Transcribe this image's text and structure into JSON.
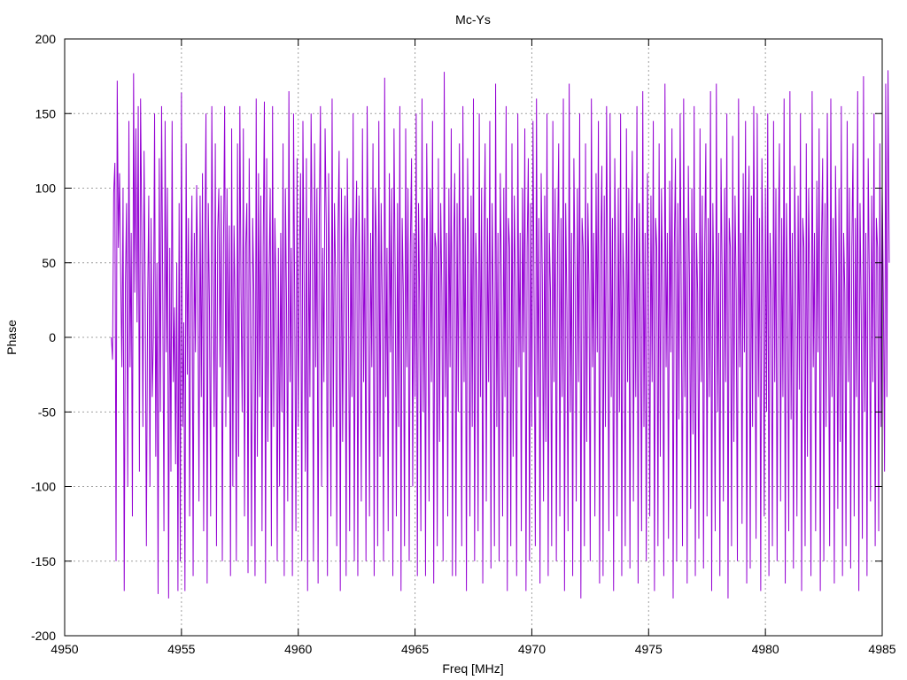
{
  "chart_data": {
    "type": "line",
    "title": "Mc-Ys",
    "xlabel": "Freq [MHz]",
    "ylabel": "Phase",
    "xlim": [
      4950,
      4985
    ],
    "ylim": [
      -200,
      200
    ],
    "xticks": [
      "4950",
      "4955",
      "4960",
      "4965",
      "4970",
      "4975",
      "4980",
      "4985"
    ],
    "yticks": [
      "200",
      "150",
      "100",
      "50",
      "0",
      "-50",
      "-100",
      "-150",
      "-200"
    ],
    "grid": true,
    "series": [
      {
        "color": "#9400d3",
        "x_start": 4952.0,
        "x_step": 0.05,
        "values": [
          0,
          -15,
          97,
          117,
          -150,
          172,
          60,
          110,
          40,
          -20,
          100,
          -170,
          35,
          90,
          -100,
          145,
          -20,
          70,
          -120,
          177,
          30,
          140,
          10,
          155,
          -90,
          160,
          70,
          -60,
          125,
          30,
          -140,
          20,
          95,
          -100,
          80,
          -40,
          0,
          150,
          -80,
          50,
          -172,
          120,
          -50,
          155,
          30,
          -130,
          145,
          -10,
          100,
          -175,
          60,
          -90,
          145,
          -30,
          20,
          -85,
          50,
          -170,
          90,
          -150,
          164,
          -60,
          10,
          -170,
          130,
          -25,
          80,
          -120,
          30,
          95,
          -160,
          70,
          -10,
          102,
          40,
          -110,
          95,
          -40,
          110,
          -130,
          60,
          150,
          -165,
          90,
          20,
          -120,
          155,
          40,
          -60,
          130,
          -140,
          70,
          100,
          -20,
          95,
          -150,
          60,
          155,
          -60,
          100,
          -40,
          75,
          -160,
          140,
          -100,
          75,
          20,
          -150,
          130,
          -80,
          155,
          30,
          -50,
          140,
          -120,
          60,
          90,
          -158,
          120,
          20,
          -140,
          80,
          30,
          -160,
          160,
          -80,
          110,
          -40,
          95,
          -130,
          60,
          158,
          -165,
          120,
          -70,
          40,
          100,
          -140,
          155,
          -60,
          80,
          30,
          -150,
          60,
          -100,
          70,
          -50,
          130,
          -160,
          100,
          20,
          -110,
          165,
          -30,
          60,
          -160,
          150,
          20,
          -130,
          120,
          -60,
          50,
          110,
          -150,
          145,
          40,
          -90,
          120,
          -170,
          80,
          -40,
          150,
          60,
          -150,
          130,
          -20,
          100,
          -165,
          80,
          155,
          -100,
          60,
          -30,
          140,
          75,
          -160,
          110,
          20,
          -120,
          160,
          -60,
          90,
          40,
          -140,
          70,
          125,
          -170,
          100,
          -70,
          50,
          95,
          -160,
          120,
          30,
          -130,
          80,
          -40,
          150,
          -150,
          60,
          105,
          -160,
          95,
          20,
          -110,
          140,
          -30,
          80,
          -150,
          155,
          40,
          -120,
          70,
          -20,
          130,
          -160,
          100,
          60,
          -140,
          145,
          -80,
          90,
          20,
          -150,
          174,
          -40,
          60,
          -130,
          110,
          -10,
          100,
          -160,
          140,
          40,
          -120,
          90,
          -60,
          155,
          -170,
          80,
          30,
          -140,
          140,
          -20,
          100,
          -150,
          60,
          120,
          -100,
          70,
          -40,
          150,
          -160,
          90,
          20,
          -130,
          160,
          -50,
          80,
          -160,
          130,
          40,
          -110,
          100,
          -30,
          145,
          -165,
          70,
          60,
          -140,
          120,
          -70,
          90,
          30,
          -150,
          178,
          -40,
          70,
          -120,
          100,
          -20,
          140,
          -160,
          60,
          110,
          -160,
          90,
          -50,
          130,
          20,
          -140,
          155,
          -30,
          80,
          -170,
          120,
          40,
          -120,
          95,
          -60,
          160,
          -150,
          70,
          30,
          -130,
          150,
          -40,
          100,
          -165,
          60,
          130,
          -110,
          80,
          -30,
          145,
          -155,
          90,
          20,
          -140,
          170,
          -60,
          70,
          -150,
          110,
          40,
          -120,
          100,
          -40,
          155,
          -170,
          80,
          60,
          -140,
          130,
          -80,
          95,
          30,
          -160,
          150,
          -20,
          70,
          -130,
          100,
          -10,
          140,
          -170,
          60,
          120,
          -150,
          90,
          -60,
          145,
          20,
          -140,
          160,
          -40,
          80,
          -165,
          110,
          40,
          -110,
          95,
          -70,
          150,
          -160,
          70,
          30,
          -140,
          145,
          -30,
          100,
          -150,
          60,
          130,
          -120,
          80,
          -40,
          160,
          -170,
          90,
          20,
          -130,
          170,
          -50,
          70,
          -160,
          120,
          40,
          -110,
          100,
          -30,
          150,
          -175,
          80,
          60,
          -140,
          130,
          -70,
          90,
          30,
          -150,
          160,
          -20,
          70,
          -120,
          110,
          -10,
          145,
          -165,
          60,
          115,
          -160,
          95,
          -60,
          155,
          20,
          -130,
          150,
          -40,
          80,
          -170,
          120,
          40,
          -120,
          100,
          -50,
          150,
          -160,
          70,
          30,
          -140,
          140,
          -30,
          100,
          -155,
          60,
          125,
          -110,
          80,
          -40,
          155,
          -165,
          90,
          20,
          -130,
          165,
          -60,
          70,
          -150,
          110,
          40,
          -120,
          95,
          -30,
          145,
          -170,
          80,
          60,
          -140,
          130,
          -80,
          100,
          30,
          -160,
          170,
          -20,
          70,
          -135,
          105,
          -10,
          140,
          -175,
          60,
          120,
          -150,
          90,
          -55,
          150,
          20,
          -140,
          160,
          -40,
          80,
          -165,
          115,
          40,
          -115,
          100,
          -65,
          155,
          -160,
          70,
          30,
          -135,
          140,
          -30,
          95,
          -155,
          60,
          130,
          -120,
          80,
          -40,
          165,
          -170,
          90,
          20,
          -130,
          170,
          -50,
          70,
          -160,
          120,
          40,
          -110,
          100,
          -30,
          150,
          -175,
          80,
          60,
          -140,
          135,
          -70,
          95,
          30,
          -150,
          160,
          -20,
          70,
          -125,
          110,
          -10,
          145,
          -165,
          60,
          115,
          -155,
          95,
          -60,
          155,
          20,
          -135,
          150,
          -40,
          80,
          -170,
          120,
          40,
          -120,
          100,
          -50,
          150,
          -160,
          70,
          30,
          -140,
          145,
          -30,
          100,
          -150,
          60,
          130,
          -110,
          80,
          -40,
          160,
          -165,
          90,
          20,
          -130,
          165,
          -55,
          70,
          -155,
          115,
          40,
          -120,
          95,
          -35,
          150,
          -170,
          80,
          60,
          -140,
          130,
          -80,
          100,
          30,
          -160,
          165,
          -20,
          70,
          -130,
          105,
          -10,
          140,
          -170,
          60,
          120,
          -150,
          90,
          -60,
          150,
          20,
          -140,
          160,
          -40,
          80,
          -165,
          115,
          40,
          -115,
          100,
          -70,
          155,
          -160,
          70,
          30,
          -140,
          145,
          -30,
          100,
          -155,
          60,
          130,
          -120,
          80,
          -40,
          165,
          -170,
          90,
          20,
          -135,
          175,
          -50,
          70,
          -160,
          120,
          40,
          -110,
          95,
          -30,
          150,
          -140,
          80,
          60,
          -130,
          130,
          -60,
          100,
          30,
          -90,
          170,
          -40,
          179,
          50
        ]
      }
    ]
  }
}
